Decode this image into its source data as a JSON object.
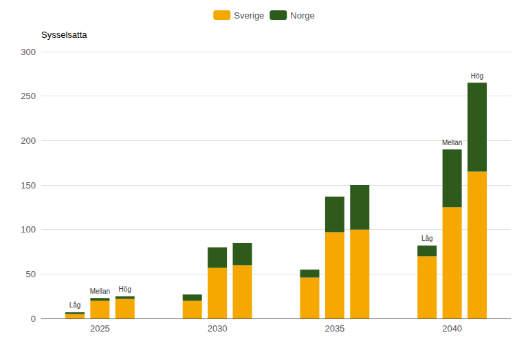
{
  "chart_data": {
    "type": "bar",
    "stacked": true,
    "ylabel": "Sysselsatta",
    "categories": [
      "2025",
      "2030",
      "2035",
      "2040"
    ],
    "stacks": [
      "Låg",
      "Mellan",
      "Hög"
    ],
    "series": [
      {
        "name": "Sverige",
        "color": "#F5A800",
        "values": [
          [
            5,
            20,
            22
          ],
          [
            20,
            57,
            60
          ],
          [
            46,
            97,
            100
          ],
          [
            70,
            125,
            165
          ]
        ]
      },
      {
        "name": "Norge",
        "color": "#2E5A1C",
        "values": [
          [
            2,
            3,
            3
          ],
          [
            7,
            23,
            25
          ],
          [
            9,
            40,
            50
          ],
          [
            12,
            65,
            100
          ]
        ]
      }
    ],
    "annotations": [
      {
        "category": "2025",
        "stack": "Låg",
        "text": "Låg"
      },
      {
        "category": "2025",
        "stack": "Mellan",
        "text": "Mellan"
      },
      {
        "category": "2025",
        "stack": "Hög",
        "text": "Hög"
      },
      {
        "category": "2040",
        "stack": "Låg",
        "text": "Låg"
      },
      {
        "category": "2040",
        "stack": "Mellan",
        "text": "Mellan"
      },
      {
        "category": "2040",
        "stack": "Hög",
        "text": "Hög"
      }
    ],
    "ylim": [
      0,
      300
    ],
    "yticks": [
      0,
      50,
      100,
      150,
      200,
      250,
      300
    ],
    "grid": true,
    "legend": "top"
  }
}
